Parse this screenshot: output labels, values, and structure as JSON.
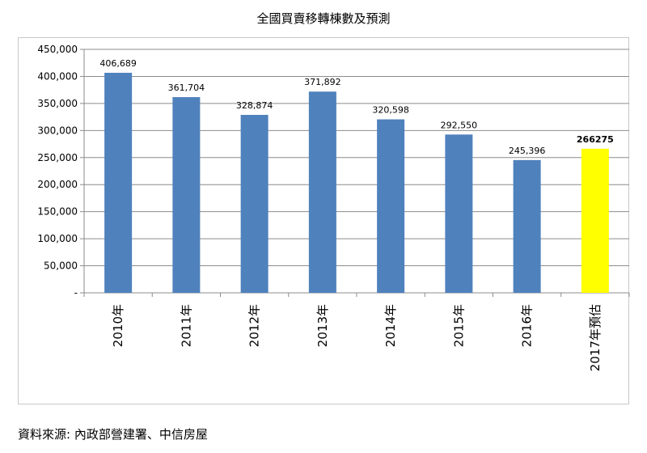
{
  "chart_data": {
    "type": "bar",
    "title": "全國買賣移轉棟數及預測",
    "xlabel": "",
    "ylabel": "",
    "categories": [
      "2010年",
      "2011年",
      "2012年",
      "2013年",
      "2014年",
      "2015年",
      "2016年",
      "2017年預估"
    ],
    "values": [
      406689,
      361704,
      328874,
      371892,
      320598,
      292550,
      245396,
      266275
    ],
    "data_labels": [
      "406,689",
      "361,704",
      "328,874",
      "371,892",
      "320,598",
      "292,550",
      "245,396",
      "266275"
    ],
    "ylim": [
      0,
      450000
    ],
    "y_ticks": [
      0,
      50000,
      100000,
      150000,
      200000,
      250000,
      300000,
      350000,
      400000,
      450000
    ],
    "y_tick_labels": [
      "-",
      "50,000",
      "100,000",
      "150,000",
      "200,000",
      "250,000",
      "300,000",
      "350,000",
      "400,000",
      "450,000"
    ],
    "grid": true,
    "legend": "none",
    "colors": {
      "bar": "#4f81bd",
      "highlight": "#ffff00",
      "grid": "#8c8c8c"
    },
    "highlight_index": 7
  },
  "footer": {
    "source": "資料來源: 內政部營建署、中信房屋"
  }
}
